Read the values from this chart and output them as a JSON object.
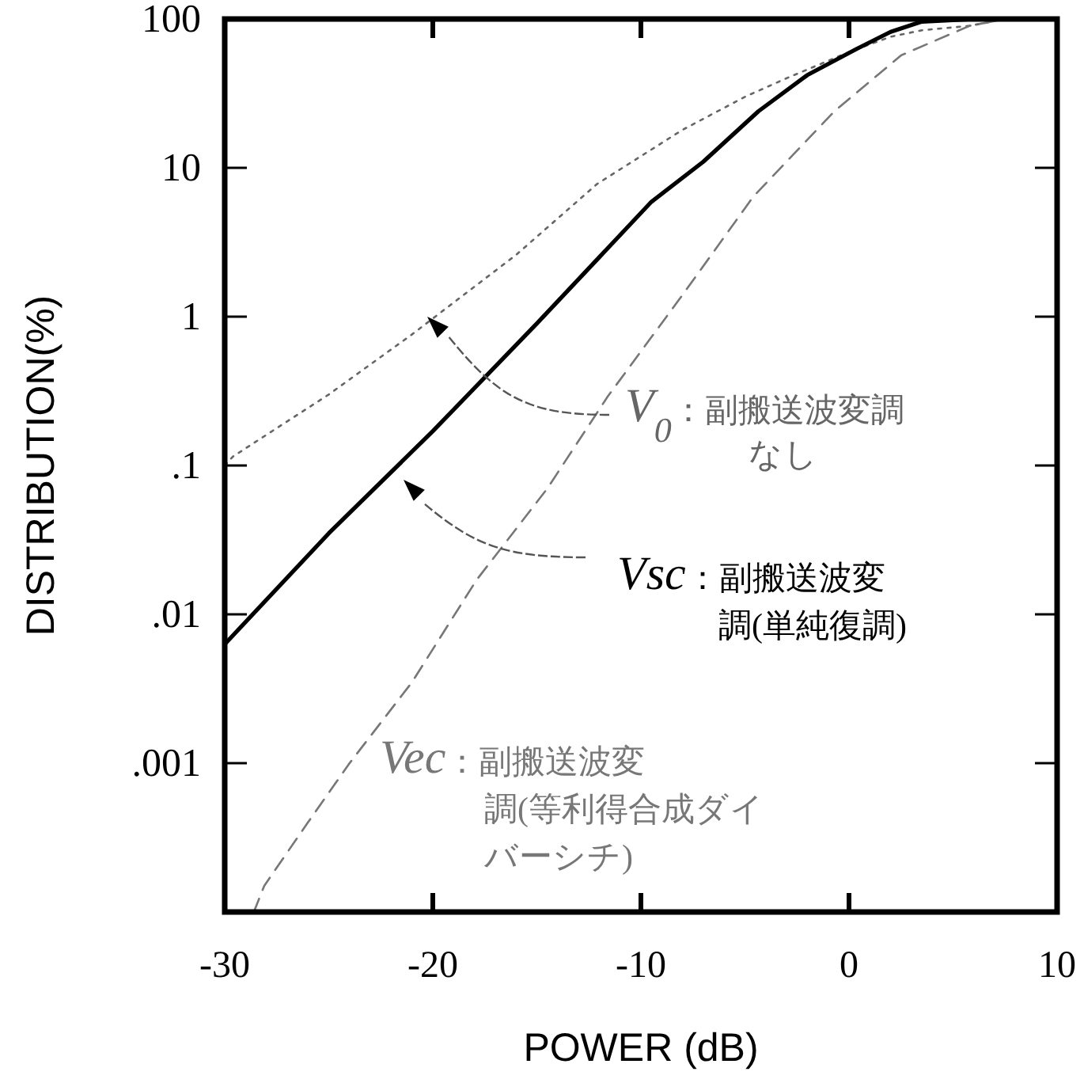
{
  "chart_data": {
    "type": "line",
    "xlabel": "POWER (dB)",
    "ylabel": "DISTRIBUTION(%)",
    "log": "y",
    "xlim": [
      -30,
      10
    ],
    "ylim": [
      0.0001,
      100
    ],
    "xticks": [
      -30,
      -20,
      -10,
      0,
      10
    ],
    "yticks": [
      {
        "value": 0.001,
        "label": ".001"
      },
      {
        "value": 0.01,
        "label": ".01"
      },
      {
        "value": 0.1,
        "label": ".1"
      },
      1,
      10,
      100
    ],
    "series": [
      {
        "name": "*V*$_{0}$：副搬送波変調なし",
        "color": "#666666",
        "line_style": "dotted",
        "x": [
          -30,
          -29.6,
          -25,
          -21,
          -16,
          -12.1,
          -8,
          -5,
          -3,
          0,
          2,
          3.5,
          5.8,
          7.5
        ],
        "values": [
          0.1,
          0.115,
          0.3,
          0.76,
          2.6,
          7.8,
          18,
          30,
          40,
          60,
          76,
          84,
          90,
          100
        ]
      },
      {
        "name": "*Vsc*：副搬送波変調(単純復調)",
        "color": "#000000",
        "line_style": "solid",
        "x": [
          -30,
          -25,
          -20,
          -15,
          -9.5,
          -7,
          -4.35,
          -2,
          0.37,
          2,
          3.5,
          6.1,
          10
        ],
        "values": [
          0.0063,
          0.035,
          0.17,
          0.9,
          5.9,
          11,
          24,
          42,
          63,
          82,
          96,
          100,
          100
        ]
      },
      {
        "name": "*Vec*：副搬送波変調(等利得合成ダイバーシチ)",
        "color": "#777777",
        "line_style": "dashed",
        "x": [
          -28.6,
          -28.1,
          -26,
          -24,
          -21,
          -17.9,
          -14.5,
          -11.6,
          -8,
          -4.6,
          -0.7,
          2.5,
          5.8,
          7.5
        ],
        "values": [
          0.0001,
          0.00015,
          0.0004,
          0.001,
          0.0035,
          0.017,
          0.07,
          0.29,
          1.4,
          6.4,
          24,
          57,
          90,
          100
        ]
      }
    ]
  }
}
